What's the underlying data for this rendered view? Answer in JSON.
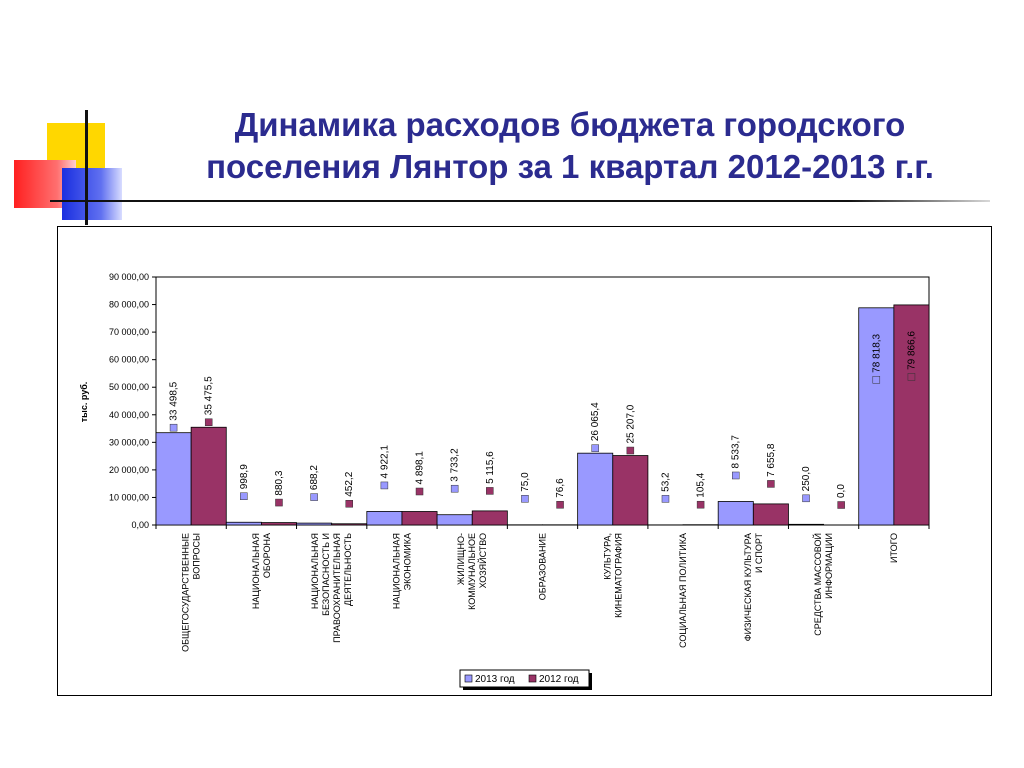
{
  "slide": {
    "title_line1": "Динамика расходов бюджета городского",
    "title_line2": "поселения Лянтор за 1 квартал 2012-2013 г.г."
  },
  "colors": {
    "title": "#2b2b8f",
    "series_2013": "#9999ff",
    "series_2012": "#993366",
    "deco_yellow": "#ffd700",
    "deco_red": "#ff4040",
    "deco_blue": "#2233dd"
  },
  "chart_data": {
    "type": "bar",
    "title": "",
    "xlabel": "",
    "ylabel": "тыс. руб.",
    "ylim": [
      0,
      90000
    ],
    "ytick_values": [
      0,
      10000,
      20000,
      30000,
      40000,
      50000,
      60000,
      70000,
      80000,
      90000
    ],
    "ytick_labels": [
      "0,00",
      "10 000,00",
      "20 000,00",
      "30 000,00",
      "40 000,00",
      "50 000,00",
      "60 000,00",
      "70 000,00",
      "80 000,00",
      "90 000,00"
    ],
    "grid": false,
    "legend_position": "bottom",
    "categories": [
      [
        "ОБЩЕГОСУДАРСТВЕННЫЕ",
        "ВОПРОСЫ"
      ],
      [
        "НАЦИОНАЛЬНАЯ",
        "ОБОРОНА"
      ],
      [
        "НАЦИОНАЛЬНАЯ",
        "БЕЗОПАСНОСТЬ И",
        "ПРАВООХРАНИТЕЛЬНАЯ",
        "ДЕЯТЕЛЬНОСТЬ"
      ],
      [
        "НАЦИОНАЛЬНАЯ",
        "ЭКОНОМИКА"
      ],
      [
        "ЖИЛИЩНО-",
        "КОММУНАЛЬНОЕ",
        "ХОЗЯЙСТВО"
      ],
      [
        "ОБРАЗОВАНИЕ"
      ],
      [
        "КУЛЬТУРА,",
        "КИНЕМАТОГРАФИЯ"
      ],
      [
        "СОЦИАЛЬНАЯ ПОЛИТИКА"
      ],
      [
        "ФИЗИЧЕСКАЯ КУЛЬТУРА",
        "И СПОРТ"
      ],
      [
        "СРЕДСТВА МАССОВОЙ",
        "ИНФОРМАЦИИ"
      ],
      [
        "ИТОГО"
      ]
    ],
    "series": [
      {
        "name": "2013 год",
        "color": "#9999ff",
        "values": [
          33498.5,
          998.9,
          688.2,
          4922.1,
          3733.2,
          75.0,
          26065.4,
          53.2,
          8533.7,
          250.0,
          78818.3
        ],
        "labels": [
          "33 498,5",
          "998,9",
          "688,2",
          "4 922,1",
          "3 733,2",
          "75,0",
          "26 065,4",
          "53,2",
          "8 533,7",
          "250,0",
          "78 818,3"
        ]
      },
      {
        "name": "2012 год",
        "color": "#993366",
        "values": [
          35475.5,
          880.3,
          452.2,
          4898.1,
          5115.6,
          76.6,
          25207.0,
          105.4,
          7655.8,
          0.0,
          79866.6
        ],
        "labels": [
          "35 475,5",
          "880,3",
          "452,2",
          "4 898,1",
          "5 115,6",
          "76,6",
          "25 207,0",
          "105,4",
          "7 655,8",
          "0,0",
          "79 866,6"
        ]
      }
    ]
  }
}
